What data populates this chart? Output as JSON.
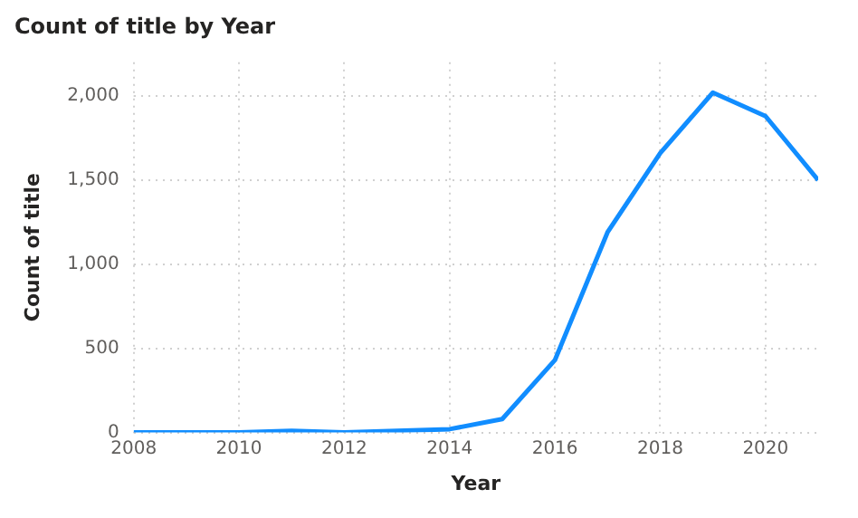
{
  "chart_data": {
    "type": "line",
    "title": "Count of title by Year",
    "xlabel": "Year",
    "ylabel": "Count of title",
    "x": [
      2008,
      2009,
      2010,
      2011,
      2012,
      2013,
      2014,
      2015,
      2016,
      2017,
      2018,
      2019,
      2020,
      2021
    ],
    "series": [
      {
        "color": "#118dff",
        "values": [
          0,
          0,
          0,
          10,
          0,
          10,
          20,
          80,
          430,
          1190,
          1660,
          2020,
          1880,
          1500
        ]
      }
    ],
    "xlim": [
      2008,
      2021
    ],
    "xticks": [
      2008,
      2010,
      2012,
      2014,
      2016,
      2018,
      2020
    ],
    "ylim": [
      0,
      2200
    ],
    "yticks": [
      {
        "value": 0,
        "label": "0"
      },
      {
        "value": 500,
        "label": "500"
      },
      {
        "value": 1000,
        "label": "1,000"
      },
      {
        "value": 1500,
        "label": "1,500"
      },
      {
        "value": 2000,
        "label": "2,000"
      }
    ],
    "grid": true,
    "marker": "none",
    "line_style": "solid"
  }
}
